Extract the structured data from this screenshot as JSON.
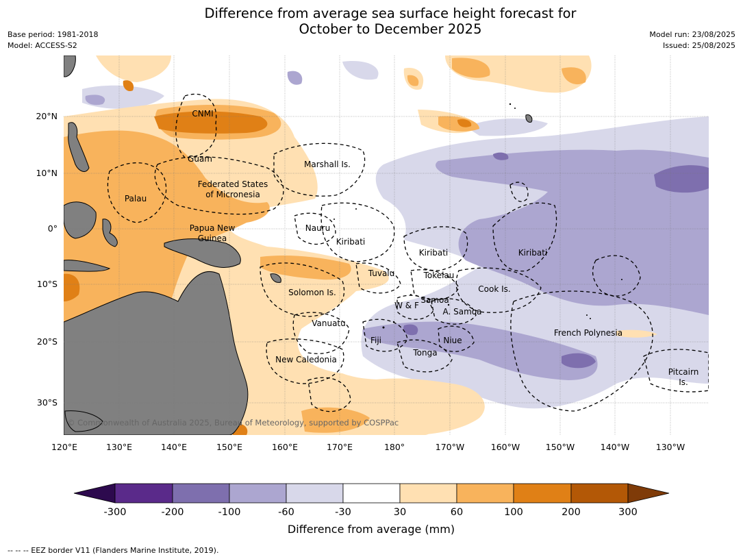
{
  "title_line1": "Difference from average sea surface height forecast for",
  "title_line2": "October to December 2025",
  "base_period": "Base period: 1981-2018",
  "model": "Model: ACCESS-S2",
  "model_run": "Model run: 23/08/2025",
  "issued": "Issued: 25/08/2025",
  "copyright": "© Commonwealth of Australia 2025, Bureau of Meteorology, supported by COSPPac",
  "map": {
    "lon_ticks": [
      "120°E",
      "130°E",
      "140°E",
      "150°E",
      "160°E",
      "170°E",
      "180°",
      "170°W",
      "160°W",
      "150°W",
      "140°W",
      "130°W"
    ],
    "lat_ticks": [
      "20°N",
      "10°N",
      "0°",
      "10°S",
      "20°S",
      "30°S"
    ],
    "labels": [
      {
        "name": "cnmi",
        "text": "CNMI"
      },
      {
        "name": "guam",
        "text": "Guam"
      },
      {
        "name": "marshall",
        "text": "Marshall Is."
      },
      {
        "name": "fsm1",
        "text": "Federated States"
      },
      {
        "name": "fsm2",
        "text": "of Micronesia"
      },
      {
        "name": "palau",
        "text": "Palau"
      },
      {
        "name": "nauru",
        "text": "Nauru"
      },
      {
        "name": "png1",
        "text": "Papua New"
      },
      {
        "name": "png2",
        "text": "Guinea"
      },
      {
        "name": "kiribati-w",
        "text": "Kiribati"
      },
      {
        "name": "kiribati-c",
        "text": "Kiribati"
      },
      {
        "name": "kiribati-e",
        "text": "Kiribati"
      },
      {
        "name": "tuvalu",
        "text": "Tuvalu"
      },
      {
        "name": "tokelau",
        "text": "Tokelau"
      },
      {
        "name": "solomon",
        "text": "Solomon Is."
      },
      {
        "name": "cook",
        "text": "Cook Is."
      },
      {
        "name": "samoa",
        "text": "Samoa"
      },
      {
        "name": "wf",
        "text": "W & F"
      },
      {
        "name": "asamoa",
        "text": "A. Samoa"
      },
      {
        "name": "vanuatu",
        "text": "Vanuatu"
      },
      {
        "name": "fiji",
        "text": "Fiji"
      },
      {
        "name": "niue",
        "text": "Niue"
      },
      {
        "name": "frpoly",
        "text": "French Polynesia"
      },
      {
        "name": "tonga",
        "text": "Tonga"
      },
      {
        "name": "newcal",
        "text": "New Caledonia"
      },
      {
        "name": "pitcairn1",
        "text": "Pitcairn"
      },
      {
        "name": "pitcairn2",
        "text": "Is."
      }
    ]
  },
  "colorbar": {
    "label": "Difference from average (mm)",
    "ticks": [
      "-300",
      "-200",
      "-100",
      "-60",
      "-30",
      "30",
      "60",
      "100",
      "200",
      "300"
    ],
    "colors": [
      "#2d0a4e",
      "#5a2a8a",
      "#7e6fae",
      "#aca6d0",
      "#d8d8ea",
      "#ffffff",
      "#ffe0b2",
      "#f8b35c",
      "#e08016",
      "#b35806",
      "#7f3b08"
    ]
  },
  "footer": "--  --  -- EEZ border V11 (Flanders Marine Institute, 2019).",
  "land_color": "#808080"
}
